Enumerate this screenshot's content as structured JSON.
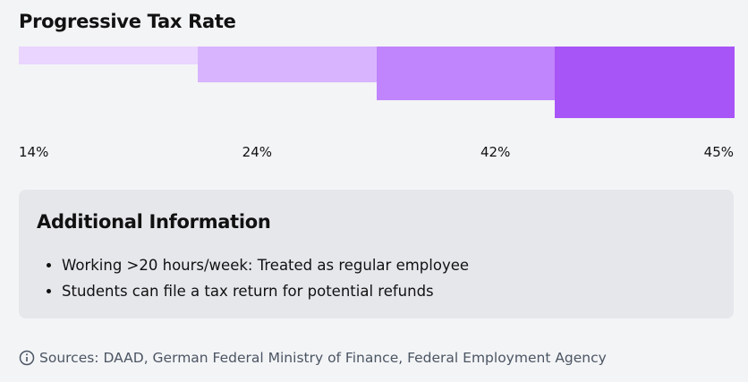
{
  "chart_data": {
    "type": "bar",
    "title": "Progressive Tax Rate",
    "categories": [
      "14%",
      "24%",
      "42%",
      "45%"
    ],
    "values": [
      14,
      24,
      42,
      45
    ],
    "colors": [
      "#e9d5ff",
      "#d8b4fe",
      "#c084fc",
      "#a855f7"
    ],
    "orientation": "stepped-down",
    "grid": false
  },
  "info": {
    "title": "Additional Information",
    "items": [
      "Working >20 hours/week: Treated as regular employee",
      "Students can file a tax return for potential refunds"
    ]
  },
  "footer": {
    "icon": "info-circle-icon",
    "sources": "Sources: DAAD, German Federal Ministry of Finance, Federal Employment Agency"
  }
}
